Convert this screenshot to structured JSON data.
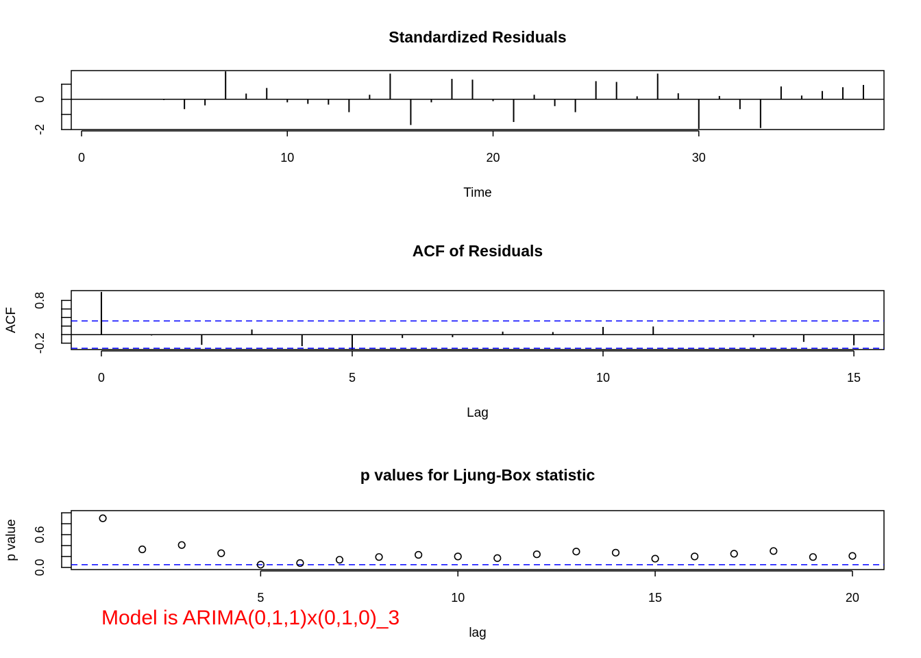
{
  "colors": {
    "ci_line": "#0000ff",
    "annotation": "#ff0000",
    "ink": "#000000"
  },
  "annotation": "Model is ARIMA(0,1,1)x(0,1,0)_3",
  "chart_data": [
    {
      "type": "bar",
      "title": "Standardized Residuals",
      "xlabel": "Time",
      "ylabel": "",
      "xlim": [
        -0.5,
        39
      ],
      "ylim": [
        -2,
        1.9
      ],
      "x_ticks": [
        0,
        10,
        20,
        30
      ],
      "y_ticks": [
        -2,
        0
      ],
      "y_minor_ticks": [
        -2,
        -1,
        0,
        1
      ],
      "y_tick_labels": [
        "-2",
        "0"
      ],
      "grid": false,
      "x": [
        1,
        2,
        3,
        4,
        5,
        6,
        7,
        8,
        9,
        10,
        11,
        12,
        13,
        14,
        15,
        16,
        17,
        18,
        19,
        20,
        21,
        22,
        23,
        24,
        25,
        26,
        27,
        28,
        29,
        30,
        31,
        32,
        33,
        34,
        35,
        36,
        37,
        38
      ],
      "values": [
        0.02,
        0.0,
        -0.02,
        -0.05,
        -0.65,
        -0.4,
        1.85,
        0.38,
        0.75,
        -0.2,
        -0.3,
        -0.35,
        -0.85,
        0.3,
        1.7,
        -1.7,
        -0.2,
        1.35,
        1.3,
        -0.12,
        -1.5,
        0.3,
        -0.45,
        -0.85,
        1.2,
        1.15,
        0.2,
        1.7,
        0.4,
        -1.95,
        0.22,
        -0.65,
        -1.9,
        0.85,
        0.25,
        0.55,
        0.8,
        0.95
      ]
    },
    {
      "type": "bar",
      "title": "ACF of Residuals",
      "xlabel": "Lag",
      "ylabel": "ACF",
      "xlim": [
        -0.6,
        15.6
      ],
      "ylim": [
        -0.35,
        1.03
      ],
      "x_ticks": [
        0,
        5,
        10,
        15
      ],
      "y_ticks": [
        -0.2,
        0.0,
        0.2,
        0.4,
        0.6,
        0.8
      ],
      "y_tick_labels": [
        "-0.2",
        "",
        "",
        "",
        "",
        "0.8"
      ],
      "ci": 0.32,
      "grid": false,
      "x": [
        0,
        1,
        2,
        3,
        4,
        5,
        6,
        7,
        8,
        9,
        10,
        11,
        12,
        13,
        14,
        15
      ],
      "values": [
        1.0,
        -0.02,
        -0.24,
        0.12,
        -0.27,
        -0.35,
        -0.08,
        -0.06,
        0.07,
        0.06,
        0.18,
        0.19,
        -0.01,
        -0.06,
        -0.17,
        -0.25
      ]
    },
    {
      "type": "scatter",
      "title": "p values for Ljung-Box statistic",
      "xlabel": "lag",
      "ylabel": "p value",
      "xlim": [
        0.2,
        20.8
      ],
      "ylim": [
        -0.04,
        1.04
      ],
      "x_ticks": [
        5,
        10,
        15,
        20
      ],
      "y_ticks": [
        0.0,
        0.2,
        0.4,
        0.6,
        0.8,
        1.0
      ],
      "y_tick_labels": [
        "0.0",
        "",
        "",
        "0.6",
        "",
        ""
      ],
      "ref_line": 0.05,
      "grid": false,
      "x": [
        1,
        2,
        3,
        4,
        5,
        6,
        7,
        8,
        9,
        10,
        11,
        12,
        13,
        14,
        15,
        16,
        17,
        18,
        19,
        20
      ],
      "values": [
        0.9,
        0.33,
        0.41,
        0.26,
        0.05,
        0.08,
        0.14,
        0.19,
        0.23,
        0.2,
        0.17,
        0.24,
        0.29,
        0.27,
        0.16,
        0.2,
        0.25,
        0.3,
        0.19,
        0.21
      ]
    }
  ]
}
